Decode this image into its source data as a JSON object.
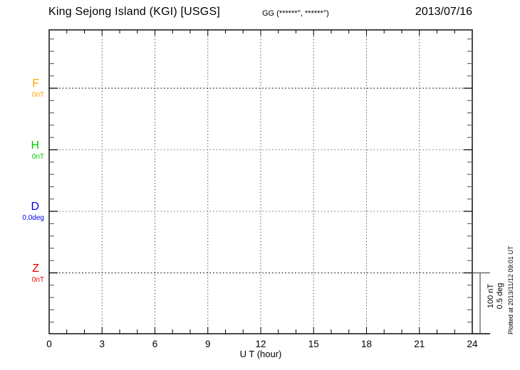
{
  "header": {
    "title": "King Sejong Island (KGI)  [USGS]",
    "coordinates": "GG (******°, ******°)",
    "date": "2013/07/16"
  },
  "channels": [
    {
      "label": "F",
      "value": "0nT",
      "color": "#FFA500"
    },
    {
      "label": "H",
      "value": "0nT",
      "color": "#00CC00"
    },
    {
      "label": "D",
      "value": "0.0deg",
      "color": "#0000EE"
    },
    {
      "label": "Z",
      "value": "0nT",
      "color": "#EE0000"
    }
  ],
  "xaxis": {
    "label": "U T (hour)"
  },
  "scale_bar": {
    "line1": "100 nT",
    "line2": "0.5 deg"
  },
  "footer": {
    "plotted_at": "Plotted at 2013/11/12 09:01 UT"
  },
  "chart_data": {
    "type": "line",
    "title": "King Sejong Island (KGI) [USGS]",
    "subtitle": "GG (******°, ******°)",
    "date": "2013/07/16",
    "xlabel": "U T (hour)",
    "xlim": [
      0,
      24
    ],
    "x_major_ticks": [
      0,
      3,
      6,
      9,
      12,
      15,
      18,
      21,
      24
    ],
    "x_minor_step": 1,
    "y_scale_per_division": "100 nT / 0.5 deg",
    "series": [
      {
        "name": "F",
        "unit": "nT",
        "baseline_value": "0nT",
        "color": "#FFA500",
        "values": []
      },
      {
        "name": "H",
        "unit": "nT",
        "baseline_value": "0nT",
        "color": "#00CC00",
        "values": []
      },
      {
        "name": "D",
        "unit": "deg",
        "baseline_value": "0.0deg",
        "color": "#0000EE",
        "values": []
      },
      {
        "name": "Z",
        "unit": "nT",
        "baseline_value": "0nT",
        "color": "#EE0000",
        "values": []
      }
    ],
    "grid": "dotted vertical gridlines every 3 hours; dotted horizontal line at each channel baseline",
    "annotations": "empty magnetogram - no data traces plotted, only zero baselines shown",
    "plotted_at": "Plotted at 2013/11/12 09:01 UT"
  }
}
